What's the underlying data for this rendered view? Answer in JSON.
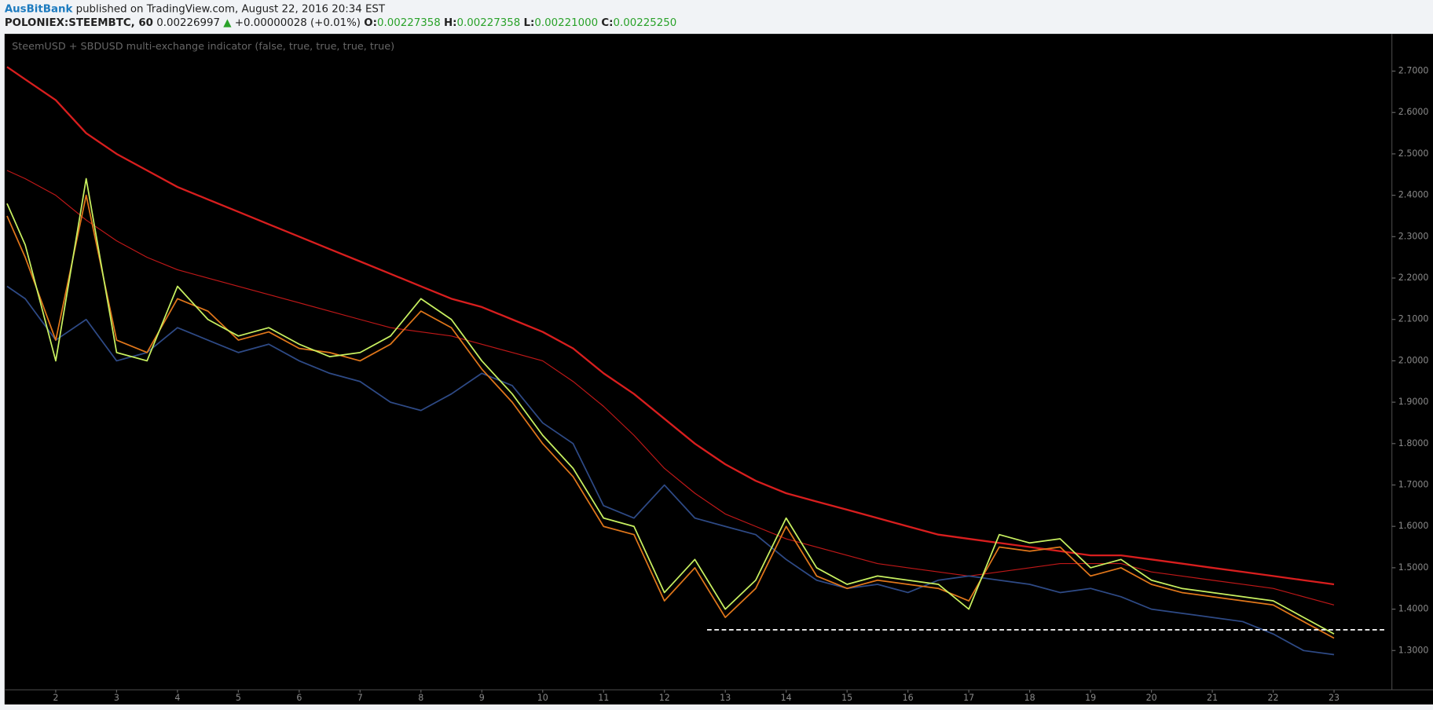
{
  "header": {
    "author": "AusBitBank",
    "published": "published on TradingView.com, August 22, 2016 20:34 EST",
    "symbol": "POLONIEX:STEEMBTC, 60",
    "last": "0.00226997",
    "arrow": "▲",
    "change": "+0.00000028 (+0.01%)",
    "o_label": "O:",
    "o": "0.00227358",
    "h_label": "H:",
    "h": "0.00227358",
    "l_label": "L:",
    "l": "0.00221000",
    "c_label": "C:",
    "c": "0.00225250"
  },
  "chart_data": {
    "type": "line",
    "title": "SteemUSD + SBDUSD multi-exchange indicator (false, true, true, true, true)",
    "x": [
      1.2,
      1.5,
      2,
      2.5,
      3,
      3.5,
      4,
      4.5,
      5,
      5.5,
      6,
      6.5,
      7,
      7.5,
      8,
      8.5,
      9,
      9.5,
      10,
      10.5,
      11,
      11.5,
      12,
      12.5,
      13,
      13.5,
      14,
      14.5,
      15,
      15.5,
      16,
      16.5,
      17,
      17.5,
      18,
      18.5,
      19,
      19.5,
      20,
      20.5,
      21,
      21.5,
      22,
      22.5,
      23
    ],
    "series": [
      {
        "color": "#d81e1e",
        "width": 2,
        "values": [
          2.71,
          2.68,
          2.63,
          2.55,
          2.5,
          2.46,
          2.42,
          2.39,
          2.36,
          2.33,
          2.3,
          2.27,
          2.24,
          2.21,
          2.18,
          2.15,
          2.13,
          2.1,
          2.07,
          2.03,
          1.97,
          1.92,
          1.86,
          1.8,
          1.75,
          1.71,
          1.68,
          1.66,
          1.64,
          1.62,
          1.6,
          1.58,
          1.57,
          1.56,
          1.55,
          1.54,
          1.53,
          1.53,
          1.52,
          1.51,
          1.5,
          1.49,
          1.48,
          1.47,
          1.46
        ]
      },
      {
        "color": "#c01818",
        "width": 1,
        "values": [
          2.46,
          2.44,
          2.4,
          2.34,
          2.29,
          2.25,
          2.22,
          2.2,
          2.18,
          2.16,
          2.14,
          2.12,
          2.1,
          2.08,
          2.07,
          2.06,
          2.04,
          2.02,
          2.0,
          1.95,
          1.89,
          1.82,
          1.74,
          1.68,
          1.63,
          1.6,
          1.57,
          1.55,
          1.53,
          1.51,
          1.5,
          1.49,
          1.48,
          1.49,
          1.5,
          1.51,
          1.51,
          1.51,
          1.49,
          1.48,
          1.47,
          1.46,
          1.45,
          1.43,
          1.41
        ]
      },
      {
        "color": "#2e4a86",
        "width": 1.5,
        "values": [
          2.18,
          2.15,
          2.05,
          2.1,
          2.0,
          2.02,
          2.08,
          2.05,
          2.02,
          2.04,
          2.0,
          1.97,
          1.95,
          1.9,
          1.88,
          1.92,
          1.97,
          1.94,
          1.85,
          1.8,
          1.65,
          1.62,
          1.7,
          1.62,
          1.6,
          1.58,
          1.52,
          1.47,
          1.45,
          1.46,
          1.44,
          1.47,
          1.48,
          1.47,
          1.46,
          1.44,
          1.45,
          1.43,
          1.4,
          1.39,
          1.38,
          1.37,
          1.34,
          1.3,
          1.29
        ]
      },
      {
        "color": "#e0761a",
        "width": 1.5,
        "values": [
          2.35,
          2.25,
          2.05,
          2.4,
          2.05,
          2.02,
          2.15,
          2.12,
          2.05,
          2.07,
          2.03,
          2.02,
          2.0,
          2.04,
          2.12,
          2.08,
          1.98,
          1.9,
          1.8,
          1.72,
          1.6,
          1.58,
          1.42,
          1.5,
          1.38,
          1.45,
          1.6,
          1.48,
          1.45,
          1.47,
          1.46,
          1.45,
          1.42,
          1.55,
          1.54,
          1.55,
          1.48,
          1.5,
          1.46,
          1.44,
          1.43,
          1.42,
          1.41,
          1.37,
          1.33
        ]
      },
      {
        "color": "#c8f060",
        "width": 1.5,
        "values": [
          2.38,
          2.28,
          2.0,
          2.44,
          2.02,
          2.0,
          2.18,
          2.1,
          2.06,
          2.08,
          2.04,
          2.01,
          2.02,
          2.06,
          2.15,
          2.1,
          2.0,
          1.92,
          1.82,
          1.74,
          1.62,
          1.6,
          1.44,
          1.52,
          1.4,
          1.47,
          1.62,
          1.5,
          1.46,
          1.48,
          1.47,
          1.46,
          1.4,
          1.58,
          1.56,
          1.57,
          1.5,
          1.52,
          1.47,
          1.45,
          1.44,
          1.43,
          1.42,
          1.38,
          1.34
        ]
      }
    ],
    "support_line": {
      "value": 1.35,
      "x": [
        12.7,
        23.85
      ],
      "color": "#ffffff"
    },
    "xlim": [
      1.16,
      23.95
    ],
    "xticks": [
      2,
      3,
      4,
      5,
      6,
      7,
      8,
      9,
      10,
      11,
      12,
      13,
      14,
      15,
      16,
      17,
      18,
      19,
      20,
      21,
      22,
      23
    ],
    "ylim": [
      1.205,
      2.79
    ],
    "yticks": [
      {
        "value": 1.3,
        "label": "1.3000"
      },
      {
        "value": 1.4,
        "label": "1.4000"
      },
      {
        "value": 1.5,
        "label": "1.5000"
      },
      {
        "value": 1.6,
        "label": "1.6000"
      },
      {
        "value": 1.7,
        "label": "1.7000"
      },
      {
        "value": 1.8,
        "label": "1.8000"
      },
      {
        "value": 1.9,
        "label": "1.9000"
      },
      {
        "value": 2.0,
        "label": "2.0000"
      },
      {
        "value": 2.1,
        "label": "2.1000"
      },
      {
        "value": 2.2,
        "label": "2.2000"
      },
      {
        "value": 2.3,
        "label": "2.3000"
      },
      {
        "value": 2.4,
        "label": "2.4000"
      },
      {
        "value": 2.5,
        "label": "2.5000"
      },
      {
        "value": 2.6,
        "label": "2.6000"
      },
      {
        "value": 2.7,
        "label": "2.7000"
      }
    ]
  }
}
